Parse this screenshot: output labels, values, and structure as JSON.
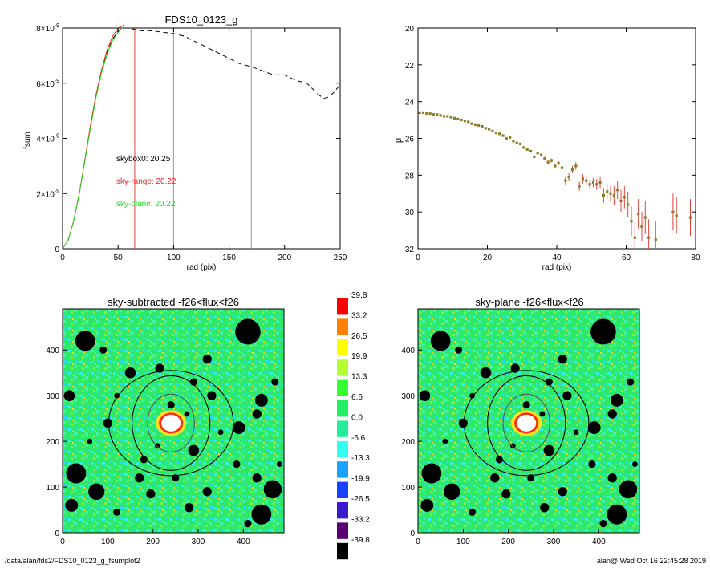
{
  "chart_data": [
    {
      "type": "line",
      "title": "FDS10_0123_g",
      "xlabel": "rad (pix)",
      "ylabel": "fsum",
      "xlim": [
        0,
        250
      ],
      "ylim": [
        0,
        8e-09
      ],
      "xticks": [
        "0",
        "50",
        "100",
        "150",
        "200",
        "250"
      ],
      "ytick_values": [
        0,
        2e-09,
        4e-09,
        6e-09,
        8e-09
      ],
      "ytick_base": [
        "0",
        "2×10",
        "4×10",
        "6×10",
        "8×10"
      ],
      "ytick_exp": [
        "",
        "-9",
        "-9",
        "-9",
        "-9"
      ],
      "vlines": [
        {
          "x": 65,
          "color": "#e8403a"
        },
        {
          "x": 100,
          "color": "#999999"
        },
        {
          "x": 170,
          "color": "#999999"
        }
      ],
      "annotations": [
        {
          "text": "skybox0: 20.25",
          "color": "#000000"
        },
        {
          "text": "sky-range: 20.22",
          "color": "#ee1c1c"
        },
        {
          "text": "sky-plane: 20.22",
          "color": "#22dd22"
        }
      ],
      "series": [
        {
          "color": "#000000",
          "style": "dashed",
          "x": [
            0,
            5,
            10,
            15,
            20,
            25,
            30,
            35,
            40,
            45,
            50,
            55,
            60,
            65,
            70,
            80,
            90,
            100,
            110,
            120,
            130,
            140,
            150,
            160,
            170,
            180,
            190,
            200,
            210,
            220,
            230,
            235,
            240,
            245,
            250
          ],
          "y": [
            0,
            3e-10,
            1e-09,
            2e-09,
            3.2e-09,
            4.4e-09,
            5.5e-09,
            6.4e-09,
            7.1e-09,
            7.6e-09,
            7.9e-09,
            8e-09,
            8e-09,
            7.95e-09,
            7.9e-09,
            7.9e-09,
            7.85e-09,
            7.8e-09,
            7.7e-09,
            7.5e-09,
            7.3e-09,
            7.1e-09,
            6.9e-09,
            6.7e-09,
            6.6e-09,
            6.45e-09,
            6.3e-09,
            6.3e-09,
            6.1e-09,
            6e-09,
            5.6e-09,
            5.45e-09,
            5.5e-09,
            5.7e-09,
            5.95e-09
          ]
        },
        {
          "color": "#ee1c1c",
          "style": "solid",
          "x": [
            0,
            5,
            10,
            15,
            20,
            25,
            30,
            35,
            40,
            45,
            50,
            55
          ],
          "y": [
            0,
            3e-10,
            1e-09,
            2e-09,
            3.2e-09,
            4.45e-09,
            5.55e-09,
            6.45e-09,
            7.2e-09,
            7.7e-09,
            8e-09,
            8.1e-09
          ]
        },
        {
          "color": "#22dd22",
          "style": "solid",
          "x": [
            0,
            5,
            10,
            15,
            20,
            25,
            30,
            35,
            40,
            45,
            50,
            55
          ],
          "y": [
            0,
            3e-10,
            1e-09,
            2e-09,
            3.15e-09,
            4.35e-09,
            5.45e-09,
            6.35e-09,
            7.05e-09,
            7.55e-09,
            7.85e-09,
            8.05e-09
          ]
        }
      ]
    },
    {
      "type": "scatter",
      "title": "",
      "xlabel": "rad (pix)",
      "ylabel": "μ",
      "xlim": [
        0,
        80
      ],
      "ylim": [
        32,
        20
      ],
      "xticks": [
        0,
        20,
        40,
        60,
        80
      ],
      "yticks": [
        20,
        22,
        24,
        26,
        28,
        30,
        32
      ],
      "marker_color": "#8b7e2a",
      "error_color": "#e8403a",
      "points": [
        [
          0.5,
          24.6,
          0.05
        ],
        [
          1.5,
          24.6,
          0.05
        ],
        [
          2.5,
          24.65,
          0.05
        ],
        [
          3.5,
          24.65,
          0.05
        ],
        [
          4.5,
          24.7,
          0.05
        ],
        [
          5.5,
          24.7,
          0.05
        ],
        [
          6.5,
          24.75,
          0.05
        ],
        [
          7.5,
          24.8,
          0.05
        ],
        [
          8.5,
          24.8,
          0.05
        ],
        [
          9.5,
          24.85,
          0.05
        ],
        [
          10.5,
          24.9,
          0.05
        ],
        [
          11.5,
          24.95,
          0.05
        ],
        [
          12.5,
          25.0,
          0.05
        ],
        [
          13.5,
          25.05,
          0.05
        ],
        [
          14.5,
          25.1,
          0.05
        ],
        [
          15.5,
          25.2,
          0.05
        ],
        [
          16.5,
          25.25,
          0.05
        ],
        [
          17.5,
          25.3,
          0.05
        ],
        [
          18.5,
          25.35,
          0.05
        ],
        [
          19.5,
          25.45,
          0.05
        ],
        [
          20.5,
          25.5,
          0.05
        ],
        [
          21.5,
          25.6,
          0.05
        ],
        [
          22.5,
          25.7,
          0.05
        ],
        [
          23.5,
          25.75,
          0.05
        ],
        [
          24.5,
          25.85,
          0.05
        ],
        [
          25.5,
          26.0,
          0.05
        ],
        [
          26.5,
          25.95,
          0.05
        ],
        [
          27.5,
          26.15,
          0.05
        ],
        [
          28.5,
          26.25,
          0.05
        ],
        [
          29.5,
          26.3,
          0.05
        ],
        [
          30.5,
          26.5,
          0.05
        ],
        [
          31.5,
          26.6,
          0.05
        ],
        [
          32.5,
          26.7,
          0.05
        ],
        [
          33.5,
          27.0,
          0.05
        ],
        [
          34.5,
          26.8,
          0.05
        ],
        [
          35.5,
          26.9,
          0.05
        ],
        [
          36.5,
          27.1,
          0.1
        ],
        [
          37.5,
          27.3,
          0.1
        ],
        [
          38.5,
          27.2,
          0.1
        ],
        [
          39.5,
          27.5,
          0.1
        ],
        [
          40.5,
          27.35,
          0.1
        ],
        [
          41.5,
          27.6,
          0.1
        ],
        [
          42.5,
          28.3,
          0.2
        ],
        [
          43.5,
          28.1,
          0.2
        ],
        [
          44.5,
          27.7,
          0.2
        ],
        [
          45.5,
          27.5,
          0.2
        ],
        [
          46.5,
          28.6,
          0.25
        ],
        [
          47.5,
          28.2,
          0.25
        ],
        [
          48.5,
          28.3,
          0.25
        ],
        [
          49.5,
          28.5,
          0.25
        ],
        [
          50.5,
          28.4,
          0.25
        ],
        [
          51.5,
          28.5,
          0.3
        ],
        [
          52.5,
          28.4,
          0.3
        ],
        [
          53.5,
          29.1,
          0.4
        ],
        [
          54.5,
          28.9,
          0.4
        ],
        [
          55.5,
          29.0,
          0.4
        ],
        [
          56.5,
          29.1,
          0.5
        ],
        [
          57.5,
          28.8,
          0.5
        ],
        [
          58.5,
          29.4,
          0.6
        ],
        [
          59.5,
          29.2,
          0.6
        ],
        [
          60.5,
          29.6,
          0.7
        ],
        [
          61.5,
          30.5,
          0.8
        ],
        [
          62.5,
          31.4,
          0.9
        ],
        [
          63.5,
          30.1,
          0.8
        ],
        [
          64.5,
          30.8,
          0.8
        ],
        [
          65.5,
          30.3,
          0.9
        ],
        [
          66.5,
          31.4,
          1.0
        ],
        [
          68.5,
          31.5,
          1.0
        ],
        [
          73.5,
          30.0,
          1.0
        ],
        [
          74.5,
          30.2,
          1.0
        ],
        [
          78.5,
          30.3,
          1.0
        ]
      ]
    },
    {
      "type": "heatmap",
      "title": "sky-subtracted -f26<flux<f26",
      "xticks": [
        0,
        100,
        200,
        300,
        400
      ],
      "yticks": [
        0,
        100,
        200,
        300,
        400
      ],
      "xlim": [
        0,
        490
      ],
      "ylim": [
        0,
        490
      ]
    },
    {
      "type": "heatmap",
      "title": "sky-plane -f26<flux<f26",
      "xticks": [
        0,
        100,
        200,
        300,
        400
      ],
      "yticks": [
        0,
        100,
        200,
        300,
        400
      ],
      "xlim": [
        0,
        490
      ],
      "ylim": [
        0,
        490
      ]
    }
  ],
  "colorbar": {
    "labels": [
      "39.8",
      "33.2",
      "26.5",
      "19.9",
      "13.3",
      "6.6",
      "0.0",
      "-6.6",
      "-13.3",
      "-19.9",
      "-26.5",
      "-33.2",
      "-39.8"
    ],
    "colors": [
      "#ff0000",
      "#ff8000",
      "#ffff00",
      "#b3ff33",
      "#33ff33",
      "#22ee66",
      "#22ee99",
      "#33ffee",
      "#1aa0ff",
      "#1a40ff",
      "#3a1acc",
      "#5a0070",
      "#000000"
    ]
  },
  "footer": {
    "left": "/data/alan/fds2/FDS10_0123_g_fsumplot2",
    "right": "alan@  Wed Oct 16 22:45:28 2019"
  }
}
